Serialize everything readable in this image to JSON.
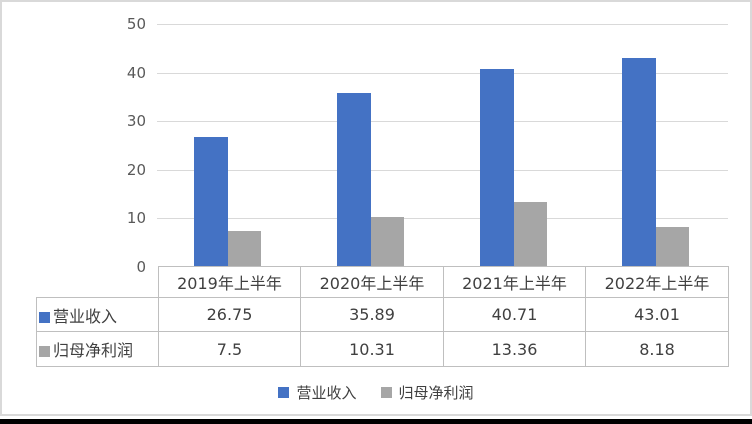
{
  "chart_data": {
    "type": "bar",
    "title": "",
    "xlabel": "",
    "ylabel": "",
    "categories": [
      "2019年上半年",
      "2020年上半年",
      "2021年上半年",
      "2022年上半年"
    ],
    "series": [
      {
        "name": "营业收入",
        "color": "#4472c4",
        "values": [
          26.75,
          35.89,
          40.71,
          43.01
        ]
      },
      {
        "name": "归母净利润",
        "color": "#a6a6a6",
        "values": [
          7.5,
          10.31,
          13.36,
          8.18
        ]
      }
    ],
    "ylim": [
      0,
      50
    ],
    "y_ticks": [
      0,
      10,
      20,
      30,
      40,
      50
    ],
    "grid": true,
    "legend_position": "bottom",
    "data_table_shown": true
  },
  "colors": {
    "gridline": "#d9d9d9",
    "table_border": "#bfbfbf",
    "axis_text": "#595959",
    "text": "#404040"
  }
}
